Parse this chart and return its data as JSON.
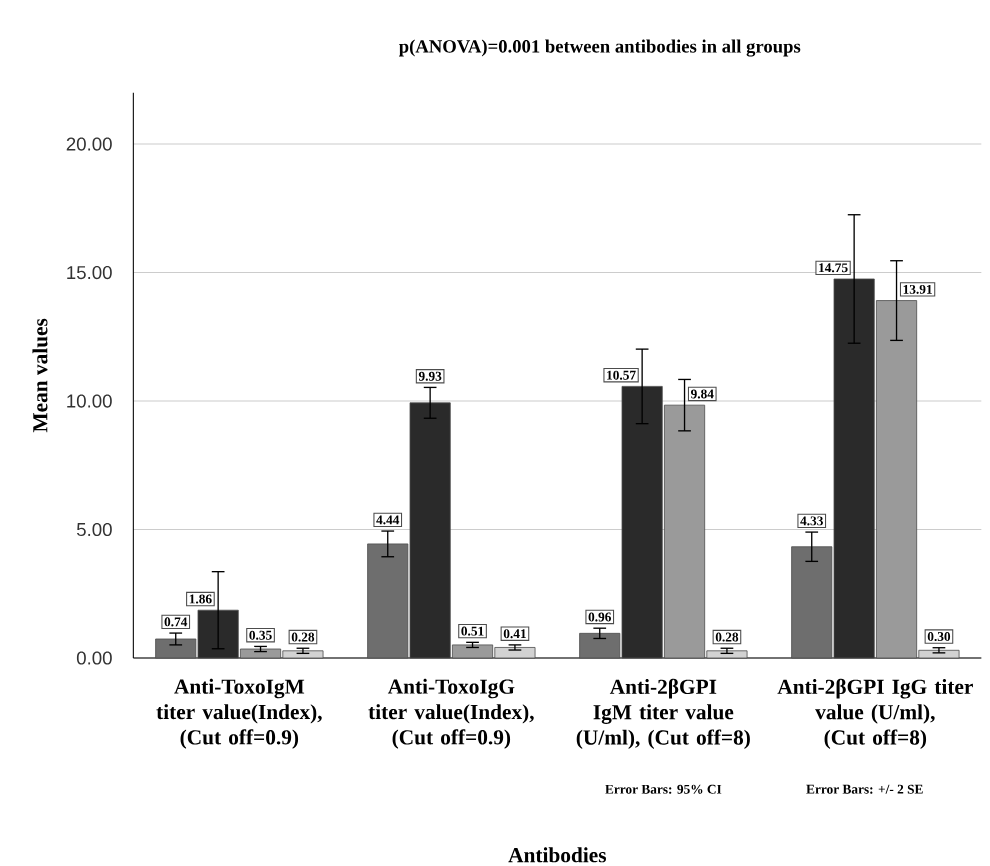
{
  "chart_data": {
    "type": "bar",
    "title": "p(ANOVA)=0.001 between antibodies in all groups",
    "xlabel": "Antibodies",
    "ylabel": "Mean values",
    "categories": [
      "Anti-ToxoIgM titer value(Index), (Cut off=0.9)",
      "Anti-ToxoIgG titer value(Index), (Cut off=0.9)",
      "Anti-2βGPI IgM titer value (U/ml), (Cut off=8)",
      "Anti-2βGPI IgG titer value (U/ml), (Cut off=8)"
    ],
    "series": [
      {
        "color": "#6e6e6e",
        "values": [
          0.74,
          4.44,
          0.96,
          4.33
        ],
        "errors": [
          0.23,
          0.5,
          0.2,
          0.57
        ],
        "value_labels": [
          "0.74",
          "4.44",
          "0.96",
          "4.33"
        ]
      },
      {
        "color": "#2a2a2a",
        "values": [
          1.86,
          9.93,
          10.57,
          14.75
        ],
        "errors": [
          1.5,
          0.6,
          1.45,
          2.5
        ],
        "value_labels": [
          "1.86",
          "9.93",
          "10.57",
          "14.75"
        ]
      },
      {
        "color": "#9a9a9a",
        "values": [
          0.35,
          0.51,
          9.84,
          13.91
        ],
        "errors": [
          0.1,
          0.1,
          1.0,
          1.55
        ],
        "value_labels": [
          "0.35",
          "0.51",
          "9.84",
          "13.91"
        ]
      },
      {
        "color": "#d2d2d2",
        "values": [
          0.28,
          0.41,
          0.28,
          0.3
        ],
        "errors": [
          0.1,
          0.1,
          0.1,
          0.1
        ],
        "value_labels": [
          "0.28",
          "0.41",
          "0.28",
          "0.30"
        ]
      }
    ],
    "ylim": [
      0,
      22
    ],
    "yticks": [
      {
        "value": 0,
        "label": "0.00"
      },
      {
        "value": 5,
        "label": "5.00"
      },
      {
        "value": 10,
        "label": "10.00"
      },
      {
        "value": 15,
        "label": "15.00"
      },
      {
        "value": 20,
        "label": "20.00"
      }
    ],
    "grid": "y",
    "annotations": [
      "Error Bars: 95% CI",
      "Error Bars: +/- 2 SE"
    ]
  }
}
